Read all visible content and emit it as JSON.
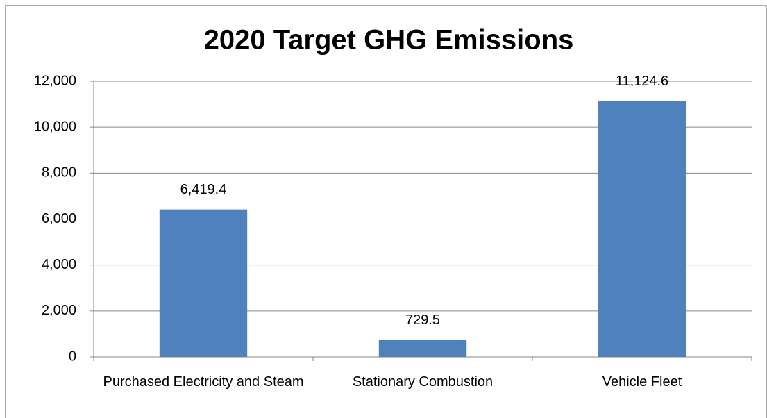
{
  "chart_data": {
    "type": "bar",
    "title": "2020 Target GHG Emissions",
    "categories": [
      "Purchased Electricity and Steam",
      "Stationary Combustion",
      "Vehicle Fleet"
    ],
    "values": [
      6419.4,
      729.5,
      11124.6
    ],
    "value_labels": [
      "6,419.4",
      "729.5",
      "11,124.6"
    ],
    "color": "#4f81bd",
    "ylim": [
      0,
      12000
    ],
    "yticks": [
      0,
      {
        "value": 2000,
        "label": "2,000"
      },
      {
        "value": 4000,
        "label": "4,000"
      },
      {
        "value": 6000,
        "label": "6,000"
      },
      {
        "value": 8000,
        "label": "8,000"
      },
      {
        "value": 10000,
        "label": "10,000"
      },
      {
        "value": 12000,
        "label": "12,000"
      }
    ],
    "grid": true
  }
}
